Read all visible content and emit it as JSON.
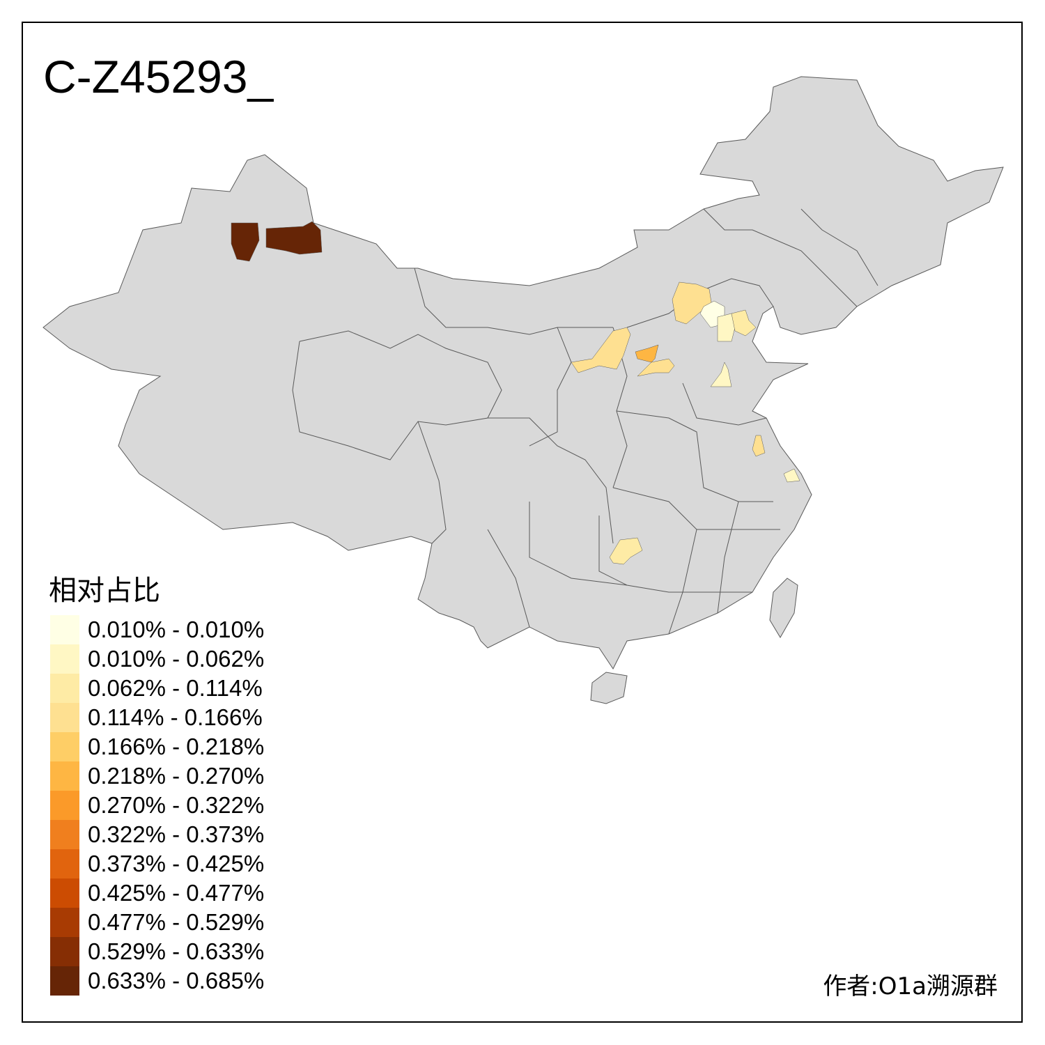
{
  "title": "C-Z45293_",
  "legend": {
    "title": "相对占比",
    "classes": [
      {
        "label": "0.010% - 0.010%",
        "color": "#FFFFE5"
      },
      {
        "label": "0.010% - 0.062%",
        "color": "#FFF7C4"
      },
      {
        "label": "0.062% - 0.114%",
        "color": "#FEEBA5"
      },
      {
        "label": "0.114% - 0.166%",
        "color": "#FEE091"
      },
      {
        "label": "0.166% - 0.218%",
        "color": "#FECE66"
      },
      {
        "label": "0.218% - 0.270%",
        "color": "#FEB643"
      },
      {
        "label": "0.270% - 0.322%",
        "color": "#FB9A29"
      },
      {
        "label": "0.322% - 0.373%",
        "color": "#F07F1E"
      },
      {
        "label": "0.373% - 0.425%",
        "color": "#E1640E"
      },
      {
        "label": "0.425% - 0.477%",
        "color": "#CC4C02"
      },
      {
        "label": "0.477% - 0.529%",
        "color": "#A83B03"
      },
      {
        "label": "0.529% - 0.633%",
        "color": "#862E04"
      },
      {
        "label": "0.633% - 0.685%",
        "color": "#662506"
      }
    ]
  },
  "map": {
    "base_color": "#D9D9D9",
    "border_color": "#595959",
    "highlighted_regions_class": [
      12,
      12,
      3,
      0,
      1,
      2,
      3,
      5,
      3,
      1,
      3,
      1,
      2
    ]
  },
  "author": "作者:O1a溯源群"
}
